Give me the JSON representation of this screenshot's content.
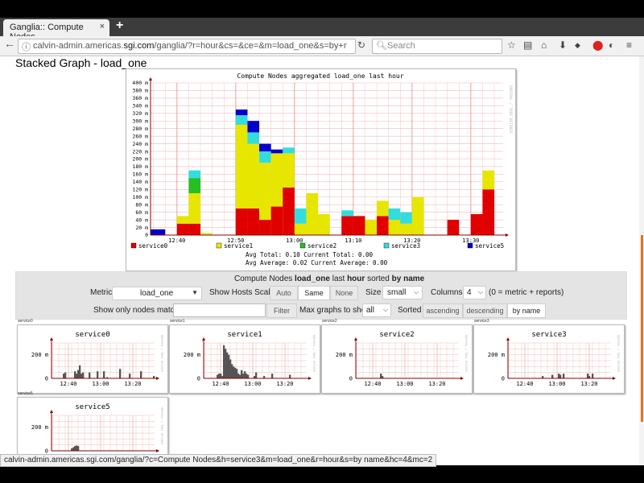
{
  "browser": {
    "tab_title": "Ganglia:: Compute Nodes",
    "tab_close": "×",
    "new_tab": "+",
    "url_prefix": "calvin-admin.americas.",
    "url_host": "sgi.com",
    "url_rest": "/ganglia/?r=hour&cs=&ce=&m=load_one&s=by+name&c=Co",
    "search_placeholder": "Search",
    "status_url": "calvin-admin.americas.sgi.com/ganglia/?c=Compute Nodes&h=service3&m=load_one&r=hour&s=by name&hc=4&mc=2"
  },
  "page": {
    "heading": "Stacked Graph - load_one"
  },
  "stacked_graph": {
    "title": "Compute Nodes aggregated load_one last hour",
    "watermark": "RRDTOOL / TOBI OETIKER",
    "stats_line1": "Avg Total:   0.10  Current Total:   0.00",
    "stats_line2": "Avg Average:   0.02  Current Average:   0.00"
  },
  "controls": {
    "summary_prefix": "Compute Nodes",
    "summary_metric": "load_one",
    "summary_mid": "last",
    "summary_range": "hour",
    "summary_sorted": "sorted",
    "summary_sort": "by name",
    "metric_label": "Metric",
    "metric_value": "load_one",
    "scaled_label": "Show Hosts Scaled:",
    "scaled_options": [
      "Auto",
      "Same",
      "None"
    ],
    "scaled_selected": "Same",
    "size_label": "Size",
    "size_value": "small",
    "columns_label": "Columns",
    "columns_value": "4",
    "columns_note": "(0 = metric + reports)",
    "match_label": "Show only nodes matching",
    "match_value": "",
    "filter_button": "Filter",
    "max_graphs_label": "Max graphs to show",
    "max_graphs_value": "all",
    "sorted_label": "Sorted",
    "sort_options": [
      "ascending",
      "descending",
      "by name"
    ],
    "sort_selected": "by name"
  },
  "host_graphs": [
    {
      "caption": "service0",
      "title": "service0"
    },
    {
      "caption": "service1",
      "title": "service1"
    },
    {
      "caption": "service2",
      "title": "service2"
    },
    {
      "caption": "service3",
      "title": "service3"
    },
    {
      "caption": "service5",
      "title": "service5"
    }
  ],
  "colors": {
    "service0": "#e00000",
    "service1": "#e6e600",
    "service2": "#22c022",
    "service3": "#33dddd",
    "service5": "#0000cc",
    "host_bar": "#555555",
    "grid": "#f4b8b8",
    "axis": "#880000"
  },
  "chart_data": [
    {
      "type": "bar",
      "stacked": true,
      "title": "Compute Nodes aggregated load_one last hour",
      "x_tick_labels": [
        "12:40",
        "12:50",
        "13:00",
        "13:10",
        "13:20",
        "13:30"
      ],
      "y_tick_labels": [
        "0",
        "20 m",
        "40 m",
        "60 m",
        "80 m",
        "100 m",
        "120 m",
        "140 m",
        "160 m",
        "180 m",
        "200 m",
        "220 m",
        "240 m",
        "260 m",
        "280 m",
        "300 m",
        "320 m",
        "340 m",
        "360 m",
        "380 m",
        "400 m"
      ],
      "ylim": [
        0,
        400
      ],
      "y_unit": "m",
      "bar_edges": [
        0,
        2.5,
        4.5,
        6.5,
        8.5,
        10.5,
        12.5,
        14.5,
        16.5,
        18.5,
        20.5,
        22.5,
        24.5,
        26.5,
        28.5,
        30.5,
        32.5,
        34.5,
        36.5,
        38.5,
        40.5,
        42.5,
        44.5,
        46.5,
        48.5,
        50.5,
        52.5,
        54.5,
        56.5,
        58.5,
        60
      ],
      "x_tick_minutes": [
        4.5,
        14.5,
        24.5,
        34.5,
        44.5,
        54.5
      ],
      "series": [
        {
          "name": "service0",
          "values": [
            0,
            0,
            30,
            30,
            0,
            0,
            0,
            70,
            70,
            40,
            75,
            125,
            0,
            0,
            0,
            0,
            50,
            50,
            0,
            50,
            0,
            0,
            0,
            0,
            0,
            40,
            0,
            55,
            120,
            0
          ]
        },
        {
          "name": "service1",
          "values": [
            0,
            0,
            20,
            80,
            5,
            0,
            0,
            220,
            170,
            150,
            140,
            90,
            30,
            110,
            55,
            0,
            0,
            0,
            40,
            40,
            40,
            30,
            100,
            0,
            0,
            0,
            0,
            0,
            50,
            0
          ]
        },
        {
          "name": "service2",
          "values": [
            0,
            0,
            0,
            40,
            0,
            0,
            0,
            0,
            0,
            0,
            0,
            0,
            0,
            0,
            0,
            0,
            0,
            0,
            0,
            0,
            0,
            0,
            0,
            0,
            0,
            0,
            0,
            0,
            0,
            0
          ]
        },
        {
          "name": "service3",
          "values": [
            0,
            0,
            0,
            20,
            0,
            0,
            0,
            25,
            30,
            30,
            0,
            15,
            40,
            0,
            0,
            0,
            15,
            0,
            0,
            0,
            30,
            30,
            0,
            0,
            0,
            0,
            0,
            0,
            0,
            0
          ]
        },
        {
          "name": "service5",
          "values": [
            15,
            0,
            0,
            0,
            0,
            0,
            0,
            15,
            30,
            20,
            10,
            0,
            0,
            0,
            0,
            0,
            0,
            0,
            0,
            0,
            0,
            0,
            0,
            0,
            0,
            0,
            0,
            0,
            0,
            0
          ]
        }
      ],
      "legend": [
        "service0",
        "service1",
        "service2",
        "service3",
        "service5"
      ],
      "legend_position": "bottom",
      "grid": true
    },
    {
      "type": "area",
      "title": "service0",
      "x_tick_labels": [
        "12:40",
        "13:00",
        "13:20"
      ],
      "x_tick_minutes": [
        10.5,
        30.5,
        50.5
      ],
      "y_tick_labels": [
        "0",
        "200 m"
      ],
      "ylim": [
        0,
        300
      ],
      "grid": true,
      "values": [
        0,
        0,
        0,
        0,
        0,
        0,
        0,
        40,
        50,
        0,
        0,
        0,
        0,
        0,
        60,
        40,
        70,
        110,
        40,
        50,
        0,
        0,
        0,
        50,
        0,
        0,
        0,
        0,
        60,
        0,
        0,
        0,
        60,
        0,
        10,
        0,
        0,
        0,
        0,
        0,
        0,
        0,
        80,
        0,
        0,
        0,
        0,
        0,
        40,
        0,
        0,
        0,
        0,
        0,
        0,
        60,
        0,
        0,
        0,
        0,
        0,
        0,
        0,
        20
      ]
    },
    {
      "type": "area",
      "title": "service1",
      "x_tick_labels": [
        "12:40",
        "13:00",
        "13:20"
      ],
      "x_tick_minutes": [
        10.5,
        30.5,
        50.5
      ],
      "y_tick_labels": [
        "0",
        "200 m"
      ],
      "ylim": [
        0,
        300
      ],
      "grid": true,
      "values": [
        0,
        0,
        0,
        0,
        0,
        0,
        0,
        0,
        30,
        40,
        40,
        20,
        280,
        250,
        220,
        200,
        160,
        120,
        100,
        90,
        80,
        40,
        30,
        70,
        40,
        60,
        40,
        30,
        0,
        0,
        0,
        20,
        50,
        0,
        0,
        0,
        0,
        20,
        0,
        0,
        0,
        0,
        40,
        0,
        0,
        0,
        0,
        0,
        0,
        0,
        0,
        0,
        0,
        30,
        0,
        0,
        0,
        0,
        0,
        0,
        0,
        0,
        0,
        0
      ]
    },
    {
      "type": "area",
      "title": "service2",
      "x_tick_labels": [
        "12:40",
        "13:00",
        "13:20"
      ],
      "x_tick_minutes": [
        10.5,
        30.5,
        50.5
      ],
      "y_tick_labels": [
        "0",
        "200 m"
      ],
      "ylim": [
        0,
        300
      ],
      "grid": true,
      "values": [
        0,
        0,
        0,
        0,
        0,
        0,
        0,
        0,
        0,
        0,
        0,
        0,
        0,
        0,
        0,
        40,
        20,
        0,
        0,
        0,
        0,
        0,
        0,
        0,
        0,
        0,
        0,
        0,
        0,
        0,
        0,
        0,
        0,
        0,
        0,
        0,
        0,
        0,
        0,
        0,
        0,
        0,
        0,
        0,
        0,
        0,
        0,
        0,
        0,
        0,
        0,
        0,
        0,
        0,
        0,
        0,
        0,
        0,
        0,
        0,
        0,
        0,
        0,
        0
      ]
    },
    {
      "type": "area",
      "title": "service3",
      "x_tick_labels": [
        "12:40",
        "13:00",
        "13:20"
      ],
      "x_tick_minutes": [
        10.5,
        30.5,
        50.5
      ],
      "y_tick_labels": [
        "0",
        "200 m"
      ],
      "ylim": [
        0,
        300
      ],
      "grid": true,
      "values": [
        0,
        0,
        0,
        0,
        0,
        0,
        0,
        0,
        0,
        0,
        0,
        0,
        0,
        0,
        0,
        0,
        0,
        0,
        0,
        0,
        0,
        20,
        0,
        0,
        0,
        0,
        0,
        30,
        0,
        0,
        0,
        40,
        30,
        0,
        40,
        0,
        0,
        0,
        0,
        0,
        0,
        0,
        0,
        0,
        0,
        0,
        0,
        0,
        0,
        40,
        20,
        0,
        40,
        0,
        0,
        0,
        0,
        0,
        0,
        0,
        0,
        0,
        0,
        0
      ]
    },
    {
      "type": "area",
      "title": "service5",
      "x_tick_labels": [
        "12:40",
        "13:00",
        "13:20"
      ],
      "x_tick_minutes": [
        10.5,
        30.5,
        50.5
      ],
      "y_tick_labels": [
        "0",
        "200 m"
      ],
      "ylim": [
        0,
        300
      ],
      "grid": true,
      "values": [
        0,
        0,
        0,
        0,
        0,
        0,
        0,
        0,
        0,
        0,
        0,
        0,
        20,
        30,
        40,
        45,
        40,
        0,
        0,
        0,
        0,
        0,
        0,
        0,
        0,
        0,
        0,
        0,
        0,
        0,
        0,
        0,
        0,
        0,
        0,
        0,
        0,
        0,
        0,
        0,
        0,
        0,
        0,
        0,
        0,
        0,
        0,
        0,
        0,
        0,
        0,
        0,
        0,
        0,
        0,
        0,
        0,
        0,
        0,
        0,
        0,
        0,
        0,
        0
      ]
    }
  ]
}
